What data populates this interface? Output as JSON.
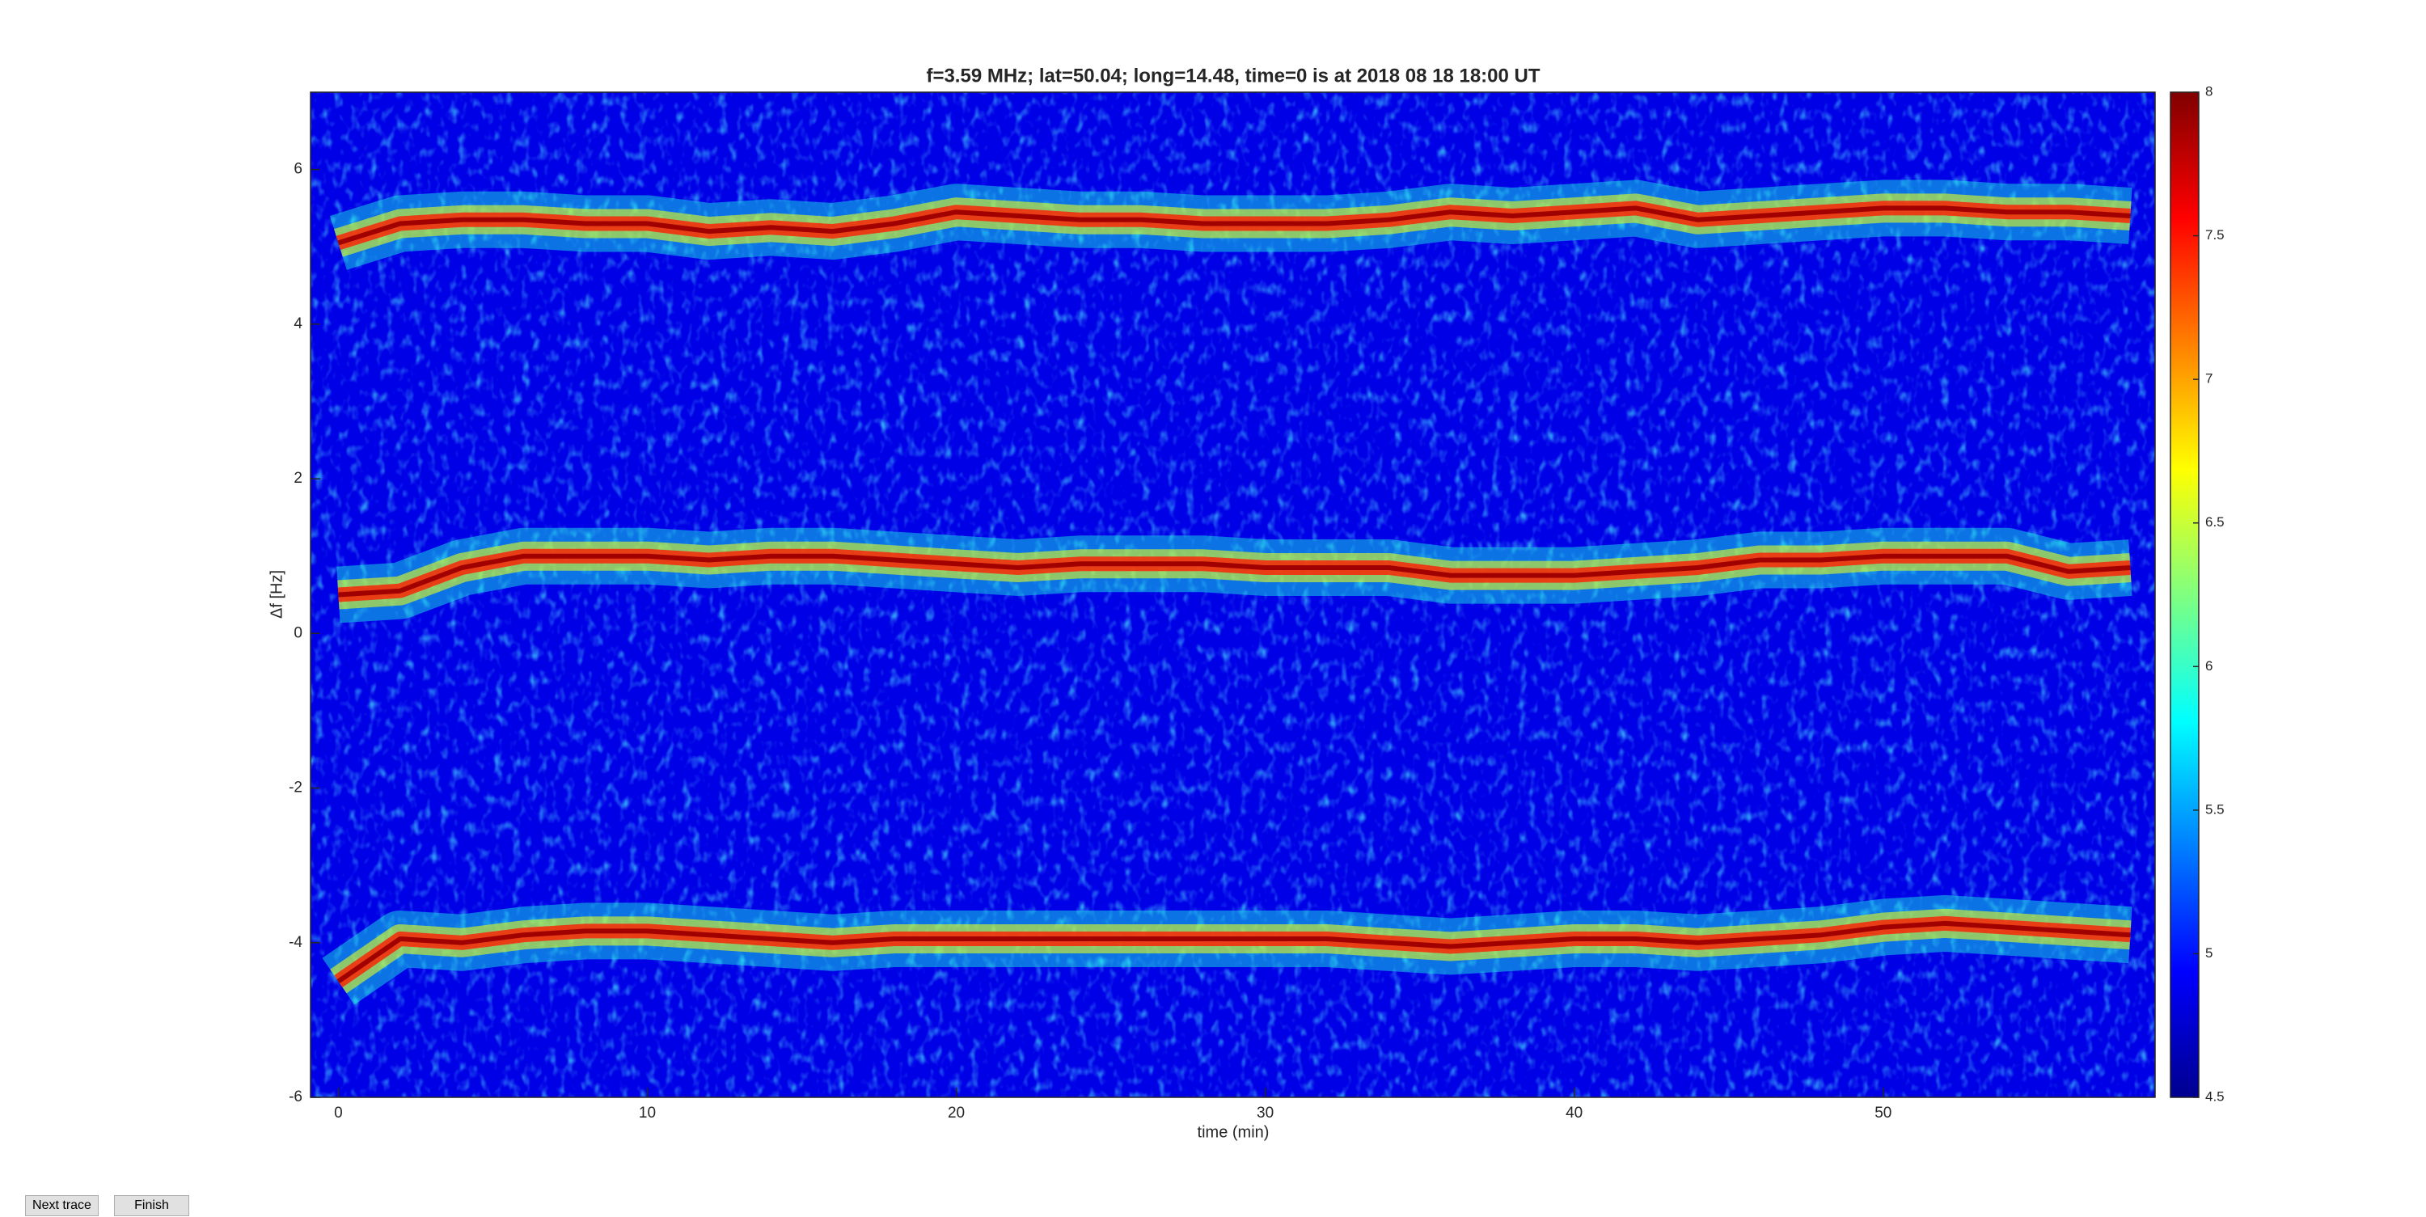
{
  "chart_data": {
    "type": "spectrogram",
    "title": "f=3.59 MHz;  lat=50.04; long=14.48, time=0 is at 2018 08 18 18:00 UT",
    "xlabel": "time (min)",
    "ylabel": "Δf [Hz]",
    "xlim": [
      -0.9,
      58.8
    ],
    "xticks": [
      0,
      10,
      20,
      30,
      40,
      50
    ],
    "ylim": [
      -6,
      7
    ],
    "yticks": [
      -6,
      -4,
      -2,
      0,
      2,
      4,
      6
    ],
    "colormap": "jet",
    "clim": [
      4.5,
      8
    ],
    "cticks": [
      4.5,
      5,
      5.5,
      6,
      6.5,
      7,
      7.5,
      8
    ],
    "x": [
      0,
      2,
      4,
      6,
      8,
      10,
      12,
      14,
      16,
      18,
      20,
      22,
      24,
      26,
      28,
      30,
      32,
      34,
      36,
      38,
      40,
      42,
      44,
      46,
      48,
      50,
      52,
      54,
      56,
      58
    ],
    "series": [
      {
        "color": "#a00000",
        "values": [
          5.05,
          5.3,
          5.35,
          5.35,
          5.3,
          5.3,
          5.2,
          5.25,
          5.2,
          5.3,
          5.45,
          5.4,
          5.35,
          5.35,
          5.3,
          5.3,
          5.3,
          5.35,
          5.45,
          5.4,
          5.45,
          5.5,
          5.35,
          5.4,
          5.45,
          5.5,
          5.5,
          5.45,
          5.45,
          5.4
        ]
      },
      {
        "color": "#a00000",
        "values": [
          0.5,
          0.55,
          0.85,
          1.0,
          1.0,
          1.0,
          0.95,
          1.0,
          1.0,
          0.95,
          0.9,
          0.85,
          0.9,
          0.9,
          0.9,
          0.85,
          0.85,
          0.85,
          0.75,
          0.75,
          0.75,
          0.8,
          0.85,
          0.95,
          0.95,
          1.0,
          1.0,
          1.0,
          0.8,
          0.85
        ]
      },
      {
        "color": "#a00000",
        "values": [
          -4.5,
          -3.95,
          -4.0,
          -3.9,
          -3.85,
          -3.85,
          -3.9,
          -3.95,
          -4.0,
          -3.95,
          -3.95,
          -3.95,
          -3.95,
          -3.95,
          -3.95,
          -3.95,
          -3.95,
          -4.0,
          -4.05,
          -4.0,
          -3.95,
          -3.95,
          -4.0,
          -3.95,
          -3.9,
          -3.8,
          -3.75,
          -3.8,
          -3.85,
          -3.9
        ]
      }
    ]
  },
  "buttons": [
    "Next trace",
    "Finish"
  ]
}
